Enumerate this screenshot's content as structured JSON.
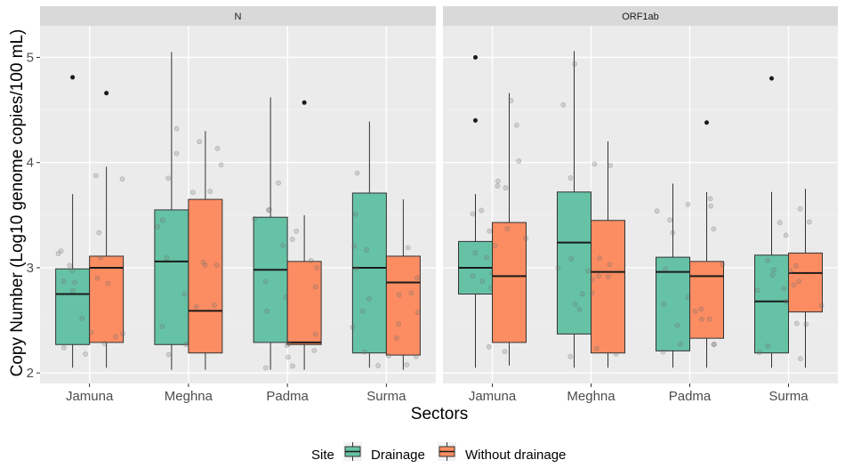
{
  "chart_data": {
    "type": "boxplot",
    "xlabel": "Sectors",
    "ylabel": "Copy Number (Log10 genome copies/100 mL)",
    "ylim": [
      1.9,
      5.3
    ],
    "yticks": [
      2,
      3,
      4,
      5
    ],
    "categories": [
      "Jamuna",
      "Meghna",
      "Padma",
      "Surma"
    ],
    "legend": {
      "title": "Site",
      "position": "bottom",
      "entries": [
        {
          "name": "Drainage",
          "color": "#66c2a5"
        },
        {
          "name": "Without drainage",
          "color": "#fc8d62"
        }
      ]
    },
    "panels": [
      {
        "strip": "N",
        "boxes": [
          {
            "category": "Jamuna",
            "site": "Drainage",
            "min": 2.05,
            "q1": 2.27,
            "median": 2.75,
            "q3": 2.99,
            "max": 3.7,
            "outliers": [
              4.81
            ]
          },
          {
            "category": "Jamuna",
            "site": "Without drainage",
            "min": 2.05,
            "q1": 2.29,
            "median": 3.0,
            "q3": 3.11,
            "max": 3.96,
            "outliers": [
              4.66
            ]
          },
          {
            "category": "Meghna",
            "site": "Drainage",
            "min": 2.03,
            "q1": 2.27,
            "median": 3.06,
            "q3": 3.55,
            "max": 5.05,
            "outliers": []
          },
          {
            "category": "Meghna",
            "site": "Without drainage",
            "min": 2.03,
            "q1": 2.19,
            "median": 2.59,
            "q3": 3.65,
            "max": 4.3,
            "outliers": []
          },
          {
            "category": "Padma",
            "site": "Drainage",
            "min": 2.03,
            "q1": 2.29,
            "median": 2.98,
            "q3": 3.48,
            "max": 4.62,
            "outliers": []
          },
          {
            "category": "Padma",
            "site": "Without drainage",
            "min": 2.03,
            "q1": 2.27,
            "median": 2.29,
            "q3": 3.06,
            "max": 3.5,
            "outliers": [
              4.57
            ]
          },
          {
            "category": "Surma",
            "site": "Drainage",
            "min": 2.05,
            "q1": 2.19,
            "median": 3.0,
            "q3": 3.71,
            "max": 4.39,
            "outliers": []
          },
          {
            "category": "Surma",
            "site": "Without drainage",
            "min": 2.03,
            "q1": 2.17,
            "median": 2.86,
            "q3": 3.11,
            "max": 3.65,
            "outliers": []
          }
        ]
      },
      {
        "strip": "ORF1ab",
        "boxes": [
          {
            "category": "Jamuna",
            "site": "Drainage",
            "min": 2.05,
            "q1": 2.75,
            "median": 3.0,
            "q3": 3.25,
            "max": 3.7,
            "outliers": [
              5.0,
              4.4
            ]
          },
          {
            "category": "Jamuna",
            "site": "Without drainage",
            "min": 2.07,
            "q1": 2.29,
            "median": 2.92,
            "q3": 3.43,
            "max": 4.66,
            "outliers": []
          },
          {
            "category": "Meghna",
            "site": "Drainage",
            "min": 2.05,
            "q1": 2.37,
            "median": 3.24,
            "q3": 3.72,
            "max": 5.06,
            "outliers": []
          },
          {
            "category": "Meghna",
            "site": "Without drainage",
            "min": 2.05,
            "q1": 2.19,
            "median": 2.96,
            "q3": 3.45,
            "max": 4.2,
            "outliers": []
          },
          {
            "category": "Padma",
            "site": "Drainage",
            "min": 2.05,
            "q1": 2.21,
            "median": 2.96,
            "q3": 3.1,
            "max": 3.8,
            "outliers": []
          },
          {
            "category": "Padma",
            "site": "Without drainage",
            "min": 2.05,
            "q1": 2.33,
            "median": 2.92,
            "q3": 3.06,
            "max": 3.72,
            "outliers": [
              4.38
            ]
          },
          {
            "category": "Surma",
            "site": "Drainage",
            "min": 2.05,
            "q1": 2.19,
            "median": 2.68,
            "q3": 3.12,
            "max": 3.72,
            "outliers": [
              4.8
            ]
          },
          {
            "category": "Surma",
            "site": "Without drainage",
            "min": 2.05,
            "q1": 2.58,
            "median": 2.95,
            "q3": 3.14,
            "max": 3.75,
            "outliers": []
          }
        ]
      }
    ]
  }
}
